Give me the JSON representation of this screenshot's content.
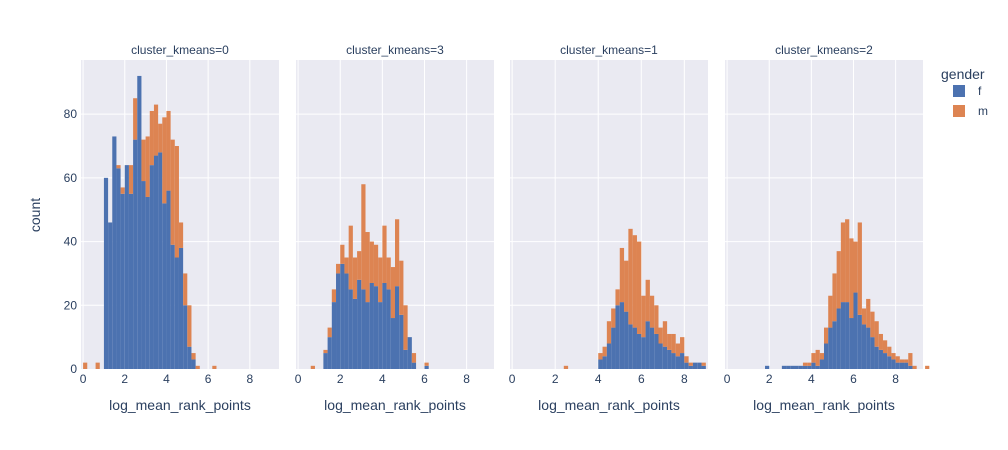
{
  "chart_data": {
    "type": "bar",
    "stacked": true,
    "xlabel": "log_mean_rank_points",
    "ylabel": "count",
    "ylim": [
      0,
      97
    ],
    "yticks": [
      0,
      20,
      40,
      60,
      80
    ],
    "bin_width": 0.2,
    "grid": true,
    "legend": {
      "title": "gender",
      "position": "right",
      "entries": [
        "f",
        "m"
      ]
    },
    "colors": {
      "f": "#4c72b0",
      "m": "#dd8452",
      "plot_bg": "#eaeaf2",
      "grid": "#ffffff",
      "text": "#2a3f5f"
    },
    "panels": [
      {
        "title": "cluster_kmeans=0",
        "xlim": [
          -0.1,
          9.4
        ],
        "xticks": [
          0,
          2,
          4,
          6,
          8
        ],
        "bins": [
          [
            0.0,
            0,
            2
          ],
          [
            0.6,
            0,
            2
          ],
          [
            1.0,
            60,
            0
          ],
          [
            1.2,
            46,
            0
          ],
          [
            1.4,
            73,
            0
          ],
          [
            1.6,
            63,
            1
          ],
          [
            1.8,
            55,
            2
          ],
          [
            2.0,
            64,
            0
          ],
          [
            2.2,
            55,
            9
          ],
          [
            2.4,
            72,
            13
          ],
          [
            2.6,
            92,
            0
          ],
          [
            2.8,
            59,
            13
          ],
          [
            3.0,
            54,
            19
          ],
          [
            3.2,
            64,
            17
          ],
          [
            3.4,
            67,
            16
          ],
          [
            3.6,
            68,
            9
          ],
          [
            3.8,
            52,
            27
          ],
          [
            4.0,
            56,
            25
          ],
          [
            4.2,
            39,
            33
          ],
          [
            4.4,
            35,
            35
          ],
          [
            4.6,
            38,
            8
          ],
          [
            4.8,
            20,
            10
          ],
          [
            5.0,
            7,
            13
          ],
          [
            5.2,
            3,
            2
          ],
          [
            5.4,
            0,
            1
          ],
          [
            6.2,
            0,
            1
          ]
        ]
      },
      {
        "title": "cluster_kmeans=3",
        "xlim": [
          -0.1,
          9.3
        ],
        "xticks": [
          0,
          2,
          4,
          6,
          8
        ],
        "bins": [
          [
            0.6,
            0,
            1
          ],
          [
            1.2,
            5,
            1
          ],
          [
            1.4,
            10,
            3
          ],
          [
            1.6,
            21,
            4
          ],
          [
            1.8,
            30,
            3
          ],
          [
            2.0,
            33,
            6
          ],
          [
            2.2,
            30,
            5
          ],
          [
            2.4,
            25,
            20
          ],
          [
            2.6,
            22,
            13
          ],
          [
            2.8,
            28,
            9
          ],
          [
            3.0,
            25,
            33
          ],
          [
            3.2,
            21,
            22
          ],
          [
            3.4,
            27,
            13
          ],
          [
            3.6,
            26,
            13
          ],
          [
            3.8,
            21,
            14
          ],
          [
            4.0,
            27,
            18
          ],
          [
            4.2,
            25,
            10
          ],
          [
            4.4,
            16,
            16
          ],
          [
            4.6,
            26,
            21
          ],
          [
            4.8,
            17,
            17
          ],
          [
            5.0,
            6,
            14
          ],
          [
            5.2,
            10,
            0
          ],
          [
            5.4,
            2,
            3
          ],
          [
            6.0,
            1,
            1
          ]
        ]
      },
      {
        "title": "cluster_kmeans=1",
        "xlim": [
          -0.1,
          9.1
        ],
        "xticks": [
          0,
          2,
          4,
          6,
          8
        ],
        "bins": [
          [
            2.4,
            0,
            1
          ],
          [
            4.0,
            3,
            2
          ],
          [
            4.2,
            4,
            3
          ],
          [
            4.4,
            8,
            7
          ],
          [
            4.6,
            13,
            6
          ],
          [
            4.8,
            20,
            5
          ],
          [
            5.0,
            21,
            17
          ],
          [
            5.2,
            18,
            16
          ],
          [
            5.4,
            14,
            30
          ],
          [
            5.6,
            13,
            29
          ],
          [
            5.8,
            11,
            29
          ],
          [
            6.0,
            10,
            13
          ],
          [
            6.2,
            15,
            13
          ],
          [
            6.4,
            13,
            10
          ],
          [
            6.6,
            11,
            9
          ],
          [
            6.8,
            8,
            5
          ],
          [
            7.0,
            7,
            8
          ],
          [
            7.2,
            6,
            5
          ],
          [
            7.4,
            5,
            6
          ],
          [
            7.6,
            4,
            4
          ],
          [
            7.8,
            5,
            5
          ],
          [
            8.0,
            2,
            2
          ],
          [
            8.2,
            1,
            1
          ],
          [
            8.4,
            2,
            0
          ],
          [
            8.6,
            2,
            0
          ],
          [
            8.8,
            1,
            1
          ]
        ]
      },
      {
        "title": "cluster_kmeans=2",
        "xlim": [
          -0.1,
          9.3
        ],
        "xticks": [
          0,
          2,
          4,
          6,
          8
        ],
        "bins": [
          [
            1.8,
            1,
            0
          ],
          [
            2.6,
            1,
            0
          ],
          [
            2.8,
            1,
            0
          ],
          [
            3.0,
            1,
            0
          ],
          [
            3.2,
            1,
            0
          ],
          [
            3.4,
            1,
            0
          ],
          [
            3.6,
            1,
            1
          ],
          [
            3.8,
            1,
            1
          ],
          [
            4.0,
            2,
            3
          ],
          [
            4.2,
            1,
            5
          ],
          [
            4.4,
            3,
            2
          ],
          [
            4.6,
            8,
            5
          ],
          [
            4.8,
            13,
            10
          ],
          [
            5.0,
            15,
            15
          ],
          [
            5.2,
            19,
            18
          ],
          [
            5.4,
            21,
            25
          ],
          [
            5.6,
            21,
            26
          ],
          [
            5.8,
            16,
            25
          ],
          [
            6.0,
            24,
            16
          ],
          [
            6.2,
            17,
            29
          ],
          [
            6.4,
            14,
            5
          ],
          [
            6.6,
            13,
            9
          ],
          [
            6.8,
            10,
            8
          ],
          [
            7.0,
            7,
            8
          ],
          [
            7.2,
            6,
            5
          ],
          [
            7.4,
            5,
            4
          ],
          [
            7.6,
            4,
            3
          ],
          [
            7.8,
            3,
            2
          ],
          [
            8.0,
            2,
            2
          ],
          [
            8.2,
            2,
            1
          ],
          [
            8.4,
            2,
            1
          ],
          [
            8.6,
            1,
            4
          ],
          [
            8.8,
            0,
            1
          ],
          [
            9.4,
            0,
            1
          ]
        ]
      }
    ]
  }
}
